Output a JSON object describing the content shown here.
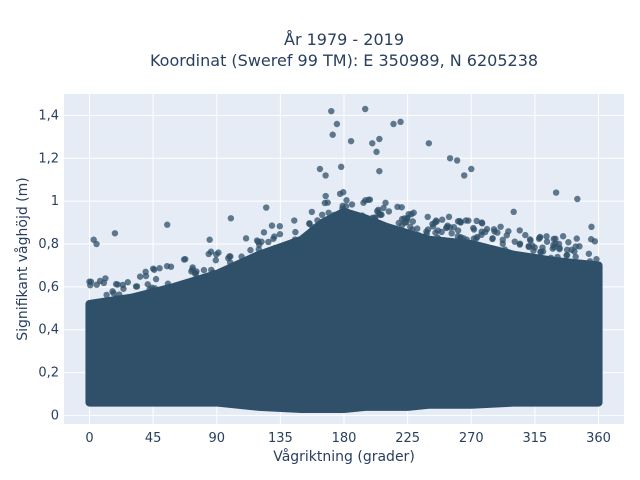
{
  "chart_data": {
    "type": "scatter",
    "title_line1": "År 1979 - 2019",
    "title_line2": "Koordinat (Sweref 99 TM): E 350989, N 6205238",
    "xlabel": "Vågriktning (grader)",
    "ylabel": "Signifikant våghöjd (m)",
    "xlim": [
      -18,
      378
    ],
    "ylim": [
      -0.04,
      1.5
    ],
    "xticks": [
      0,
      45,
      90,
      135,
      180,
      225,
      270,
      315,
      360
    ],
    "xtick_labels": [
      "0",
      "45",
      "90",
      "135",
      "180",
      "225",
      "270",
      "315",
      "360"
    ],
    "yticks": [
      0,
      0.2,
      0.4,
      0.6,
      0.8,
      1.0,
      1.2,
      1.4
    ],
    "ytick_labels": [
      "0",
      "0,2",
      "0,4",
      "0,6",
      "0,8",
      "1",
      "1,2",
      "1,4"
    ],
    "grid": true,
    "marker_color": "#2f5068",
    "background_color": "#e5ecf6",
    "dense_envelope": {
      "x": [
        0,
        30,
        60,
        90,
        120,
        150,
        165,
        180,
        195,
        210,
        225,
        240,
        270,
        300,
        330,
        360
      ],
      "y_max": [
        0.52,
        0.55,
        0.6,
        0.66,
        0.75,
        0.82,
        0.9,
        0.95,
        0.92,
        0.88,
        0.85,
        0.82,
        0.8,
        0.75,
        0.72,
        0.7
      ],
      "y_min": [
        0.06,
        0.06,
        0.06,
        0.06,
        0.04,
        0.03,
        0.03,
        0.03,
        0.04,
        0.04,
        0.04,
        0.05,
        0.05,
        0.06,
        0.06,
        0.06
      ]
    },
    "outliers": [
      {
        "x": 171,
        "y": 1.42
      },
      {
        "x": 195,
        "y": 1.43
      },
      {
        "x": 172,
        "y": 1.31
      },
      {
        "x": 175,
        "y": 1.36
      },
      {
        "x": 215,
        "y": 1.36
      },
      {
        "x": 220,
        "y": 1.37
      },
      {
        "x": 185,
        "y": 1.28
      },
      {
        "x": 200,
        "y": 1.27
      },
      {
        "x": 205,
        "y": 1.29
      },
      {
        "x": 240,
        "y": 1.27
      },
      {
        "x": 203,
        "y": 1.23
      },
      {
        "x": 255,
        "y": 1.2
      },
      {
        "x": 260,
        "y": 1.19
      },
      {
        "x": 163,
        "y": 1.15
      },
      {
        "x": 167,
        "y": 1.12
      },
      {
        "x": 178,
        "y": 1.16
      },
      {
        "x": 205,
        "y": 1.14
      },
      {
        "x": 270,
        "y": 1.15
      },
      {
        "x": 265,
        "y": 1.12
      },
      {
        "x": 330,
        "y": 1.04
      },
      {
        "x": 345,
        "y": 1.01
      },
      {
        "x": 3,
        "y": 0.82
      },
      {
        "x": 5,
        "y": 0.8
      },
      {
        "x": 18,
        "y": 0.85
      },
      {
        "x": 55,
        "y": 0.89
      },
      {
        "x": 85,
        "y": 0.82
      },
      {
        "x": 100,
        "y": 0.92
      },
      {
        "x": 125,
        "y": 0.97
      },
      {
        "x": 300,
        "y": 0.95
      },
      {
        "x": 355,
        "y": 0.88
      }
    ]
  }
}
